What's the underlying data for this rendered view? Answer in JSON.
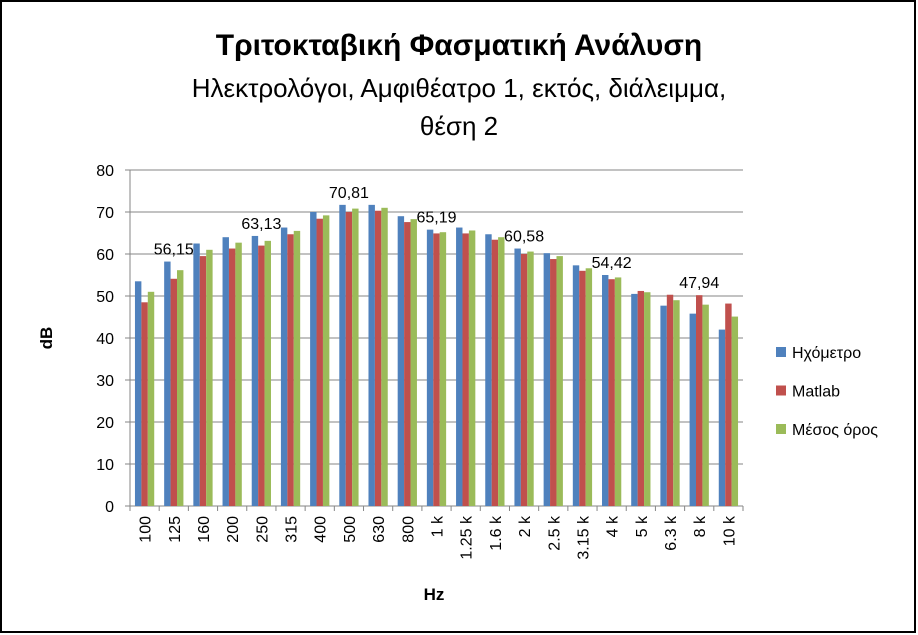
{
  "chart_data": {
    "type": "bar",
    "title": "Τριτοκταβική Φασματική Ανάλυση",
    "subtitle_lines": [
      "Ηλεκτρολόγοι, Αμφιθέατρο 1, εκτός, διάλειμμα,",
      "θέση 2"
    ],
    "x_label": "Hz",
    "y_label": "dB",
    "categories": [
      "100",
      "125",
      "160",
      "200",
      "250",
      "315",
      "400",
      "500",
      "630",
      "800",
      "1 k",
      "1.25 k",
      "1.6 k",
      "2 k",
      "2.5 k",
      "3.15 k",
      "4 k",
      "5 k",
      "6.3 k",
      "8 k",
      "10 k"
    ],
    "series": [
      {
        "name": "Ηχόμετρο",
        "color": "#4f81bd",
        "values": [
          53.5,
          58.2,
          62.5,
          64,
          64.3,
          66.3,
          70,
          71.7,
          71.7,
          69,
          65.8,
          66.3,
          64.7,
          61.3,
          60.2,
          57.3,
          55,
          50.5,
          47.7,
          45.8,
          42
        ]
      },
      {
        "name": "Matlab",
        "color": "#c0504d",
        "values": [
          48.5,
          54.1,
          59.5,
          61.3,
          62,
          64.7,
          68.4,
          70,
          70.3,
          67.6,
          64.9,
          64.9,
          63.4,
          60,
          58.8,
          56,
          54,
          51.2,
          50.3,
          50.2,
          48.2
        ]
      },
      {
        "name": "Μέσος όρος",
        "color": "#9bbb59",
        "values": [
          51,
          56.15,
          61,
          62.7,
          63.13,
          65.5,
          69.2,
          70.81,
          71,
          68.3,
          65.19,
          65.6,
          64,
          60.58,
          59.5,
          56.6,
          54.42,
          50.9,
          49,
          47.94,
          45.1
        ],
        "value_labels": [
          null,
          "56,15",
          null,
          null,
          "63,13",
          null,
          null,
          "70,81",
          null,
          null,
          "65,19",
          null,
          null,
          "60,58",
          null,
          null,
          "54,42",
          null,
          null,
          "47,94",
          null
        ]
      }
    ],
    "ylim": [
      0,
      80
    ],
    "yticks": [
      0,
      10,
      20,
      30,
      40,
      50,
      60,
      70,
      80
    ],
    "grid": true,
    "legend": "right"
  }
}
